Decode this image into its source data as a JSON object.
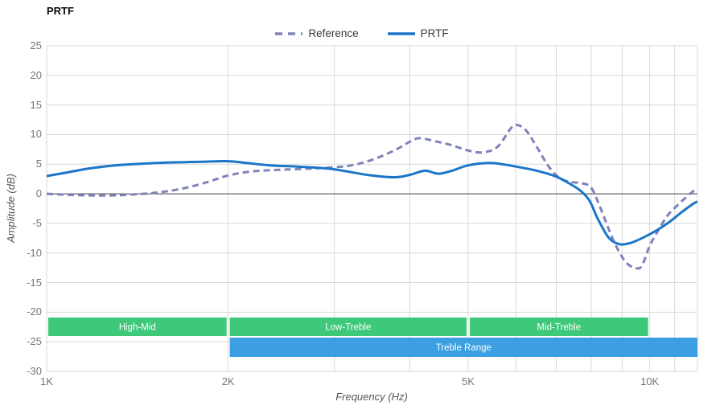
{
  "chart_data": {
    "type": "line",
    "title": "PRTF",
    "xlabel": "Frequency (Hz)",
    "ylabel": "Amplitude (dB)",
    "x_scale": "log",
    "x_range": [
      1000,
      12000
    ],
    "y_range": [
      -30,
      25
    ],
    "grid_color": "#d9d9d9",
    "zero_line_color": "#3d3d3d",
    "x_gridlines": [
      2000,
      3000,
      4000,
      5000,
      6000,
      7000,
      8000,
      9000,
      10000,
      11000
    ],
    "x_ticks": [
      {
        "value": 1000,
        "label": "1K"
      },
      {
        "value": 2000,
        "label": "2K"
      },
      {
        "value": 5000,
        "label": "5K"
      },
      {
        "value": 10000,
        "label": "10K"
      }
    ],
    "y_ticks": [
      {
        "value": 25,
        "label": "25"
      },
      {
        "value": 20,
        "label": "20"
      },
      {
        "value": 15,
        "label": "15"
      },
      {
        "value": 10,
        "label": "10"
      },
      {
        "value": 5,
        "label": "5"
      },
      {
        "value": 0,
        "label": "0"
      },
      {
        "value": -5,
        "label": "-5"
      },
      {
        "value": -10,
        "label": "-10"
      },
      {
        "value": -15,
        "label": "-15"
      },
      {
        "value": -20,
        "label": "-20"
      },
      {
        "value": -25,
        "label": "-25"
      },
      {
        "value": -30,
        "label": "-30"
      }
    ],
    "legend": [
      {
        "label": "Reference",
        "style": "dashed",
        "color": "#7f83ba"
      },
      {
        "label": "PRTF",
        "style": "solid",
        "color": "#1b75c8"
      }
    ],
    "series": [
      {
        "name": "Reference",
        "color": "#7f83ba",
        "dash": true,
        "points": [
          [
            1000,
            0
          ],
          [
            1100,
            -0.2
          ],
          [
            1250,
            -0.3
          ],
          [
            1400,
            -0.1
          ],
          [
            1550,
            0.3
          ],
          [
            1700,
            1.0
          ],
          [
            1850,
            2.0
          ],
          [
            2000,
            3.1
          ],
          [
            2200,
            3.8
          ],
          [
            2500,
            4.1
          ],
          [
            2900,
            4.4
          ],
          [
            3200,
            4.8
          ],
          [
            3500,
            5.9
          ],
          [
            3800,
            7.5
          ],
          [
            4000,
            8.8
          ],
          [
            4150,
            9.4
          ],
          [
            4400,
            8.9
          ],
          [
            4700,
            8.2
          ],
          [
            5000,
            7.3
          ],
          [
            5300,
            7.0
          ],
          [
            5600,
            8.0
          ],
          [
            5900,
            11.2
          ],
          [
            6050,
            11.6
          ],
          [
            6250,
            10.6
          ],
          [
            6500,
            7.9
          ],
          [
            6800,
            4.6
          ],
          [
            7100,
            2.6
          ],
          [
            7400,
            2.0
          ],
          [
            7700,
            1.8
          ],
          [
            8000,
            1.0
          ],
          [
            8300,
            -2.6
          ],
          [
            8700,
            -7.8
          ],
          [
            9100,
            -11.4
          ],
          [
            9450,
            -12.5
          ],
          [
            9700,
            -12.2
          ],
          [
            10000,
            -8.8
          ],
          [
            10300,
            -6.4
          ],
          [
            10700,
            -3.7
          ],
          [
            11000,
            -2.4
          ],
          [
            11400,
            -0.9
          ],
          [
            11800,
            0.4
          ],
          [
            12000,
            0.6
          ]
        ]
      },
      {
        "name": "PRTF",
        "color": "#1b75c8",
        "dash": false,
        "points": [
          [
            1000,
            3.0
          ],
          [
            1080,
            3.6
          ],
          [
            1180,
            4.3
          ],
          [
            1300,
            4.8
          ],
          [
            1450,
            5.1
          ],
          [
            1600,
            5.3
          ],
          [
            1800,
            5.4
          ],
          [
            2000,
            5.5
          ],
          [
            2150,
            5.2
          ],
          [
            2350,
            4.8
          ],
          [
            2600,
            4.6
          ],
          [
            2900,
            4.3
          ],
          [
            3100,
            3.9
          ],
          [
            3400,
            3.2
          ],
          [
            3770,
            2.8
          ],
          [
            4000,
            3.2
          ],
          [
            4240,
            3.9
          ],
          [
            4460,
            3.4
          ],
          [
            4700,
            3.9
          ],
          [
            5000,
            4.8
          ],
          [
            5400,
            5.2
          ],
          [
            5700,
            5.0
          ],
          [
            6000,
            4.6
          ],
          [
            6500,
            3.9
          ],
          [
            7000,
            2.9
          ],
          [
            7400,
            1.6
          ],
          [
            7700,
            0.4
          ],
          [
            7950,
            -1.2
          ],
          [
            8200,
            -4.2
          ],
          [
            8550,
            -7.4
          ],
          [
            8900,
            -8.5
          ],
          [
            9300,
            -8.3
          ],
          [
            9800,
            -7.3
          ],
          [
            10300,
            -6.1
          ],
          [
            10800,
            -4.7
          ],
          [
            11300,
            -3.1
          ],
          [
            11800,
            -1.7
          ],
          [
            12000,
            -1.3
          ]
        ]
      }
    ],
    "bands": [
      {
        "label": "High-Mid",
        "from": 1000,
        "to": 2000,
        "row": 0,
        "color": "#3dc87a",
        "text_color": "#ffffff"
      },
      {
        "label": "Low-Treble",
        "from": 2000,
        "to": 5000,
        "row": 0,
        "color": "#3dc87a",
        "text_color": "#ffffff"
      },
      {
        "label": "Mid-Treble",
        "from": 5000,
        "to": 10000,
        "row": 0,
        "color": "#3dc87a",
        "text_color": "#ffffff"
      },
      {
        "label": "Treble Range",
        "from": 2000,
        "to": 12000,
        "row": 1,
        "color": "#3b9fe1",
        "text_color": "#ffffff"
      }
    ]
  }
}
